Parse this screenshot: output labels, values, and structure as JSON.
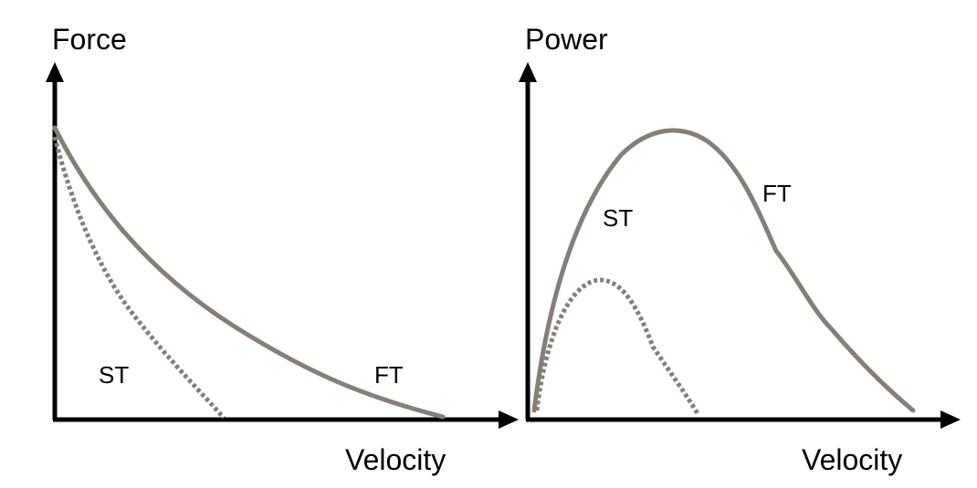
{
  "panels": [
    {
      "y_label": "Force",
      "x_label": "Velocity",
      "curve_labels": [
        "ST",
        "FT"
      ]
    },
    {
      "y_label": "Power",
      "x_label": "Velocity",
      "curve_labels": [
        "ST",
        "FT"
      ]
    }
  ]
}
